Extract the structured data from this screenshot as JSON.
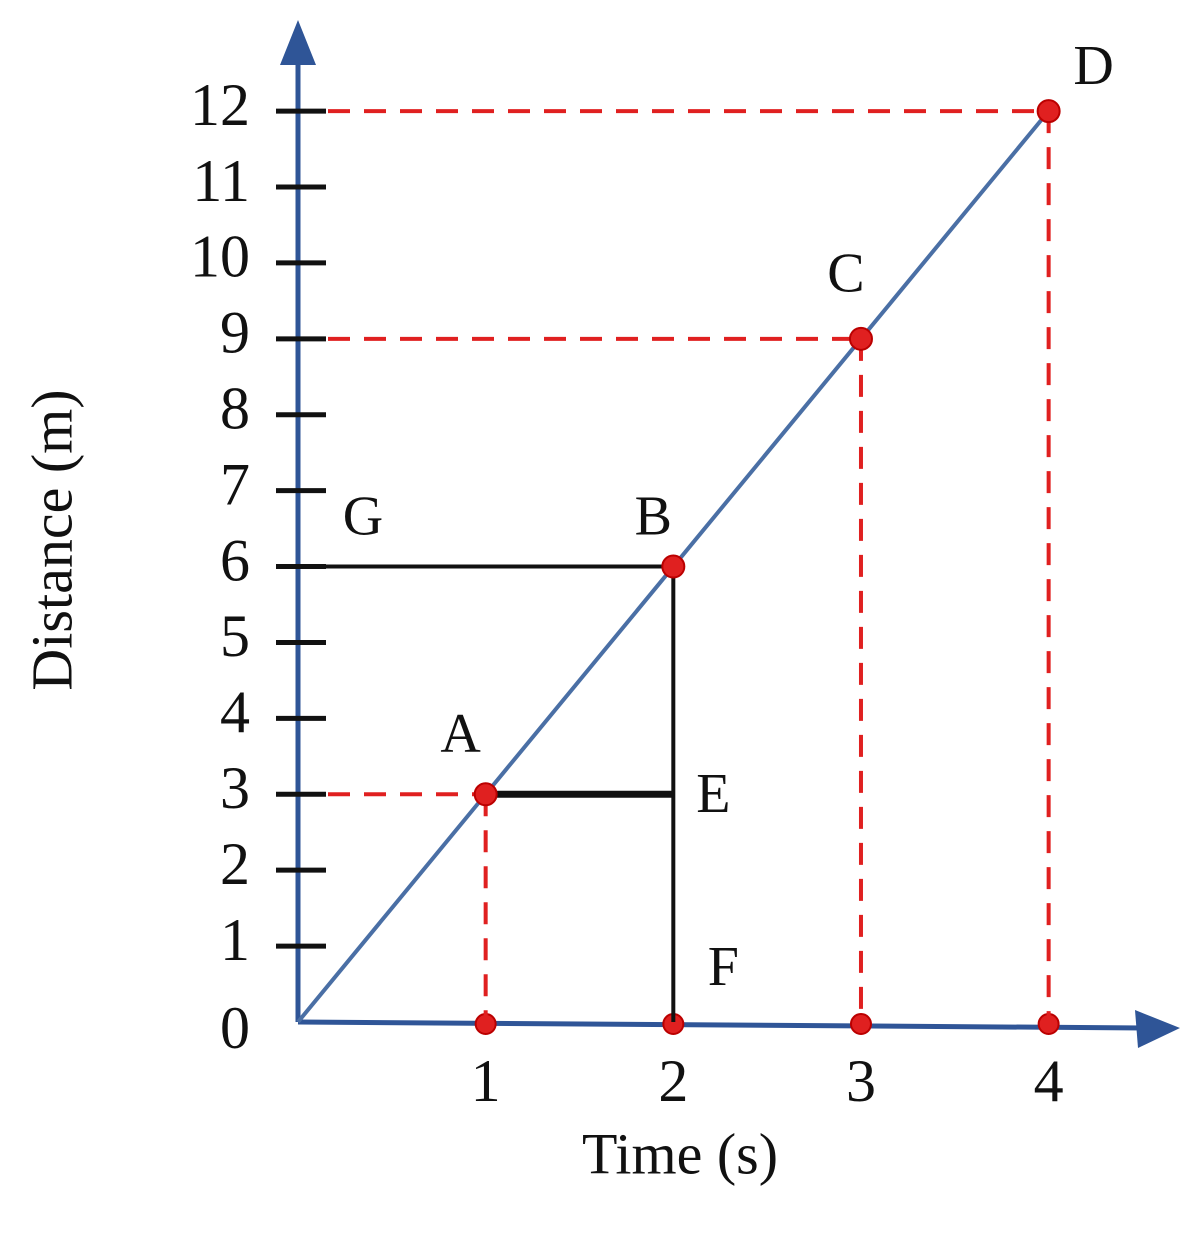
{
  "chart_data": {
    "type": "line",
    "x_label": "Time (s)",
    "y_label": "Distance (m)",
    "x": [
      0,
      1,
      2,
      3,
      4
    ],
    "series": [
      {
        "color": "#4a6fa5",
        "values": [
          0,
          3,
          6,
          9,
          12
        ]
      }
    ],
    "xlim": [
      0,
      4.7
    ],
    "ylim": [
      0,
      13.2
    ],
    "xticks": [
      1,
      2,
      3,
      4
    ],
    "yticks": [
      0,
      1,
      2,
      3,
      4,
      5,
      6,
      7,
      8,
      9,
      10,
      11,
      12
    ],
    "annotations": [
      {
        "text": "A",
        "x": 1,
        "y": 3
      },
      {
        "text": "B",
        "x": 2,
        "y": 6
      },
      {
        "text": "C",
        "x": 3,
        "y": 9
      },
      {
        "text": "D",
        "x": 4,
        "y": 12
      },
      {
        "text": "E",
        "x": 2,
        "y": 3
      },
      {
        "text": "F",
        "x": 2,
        "y": 0
      },
      {
        "text": "G",
        "x": 0,
        "y": 6
      }
    ]
  }
}
